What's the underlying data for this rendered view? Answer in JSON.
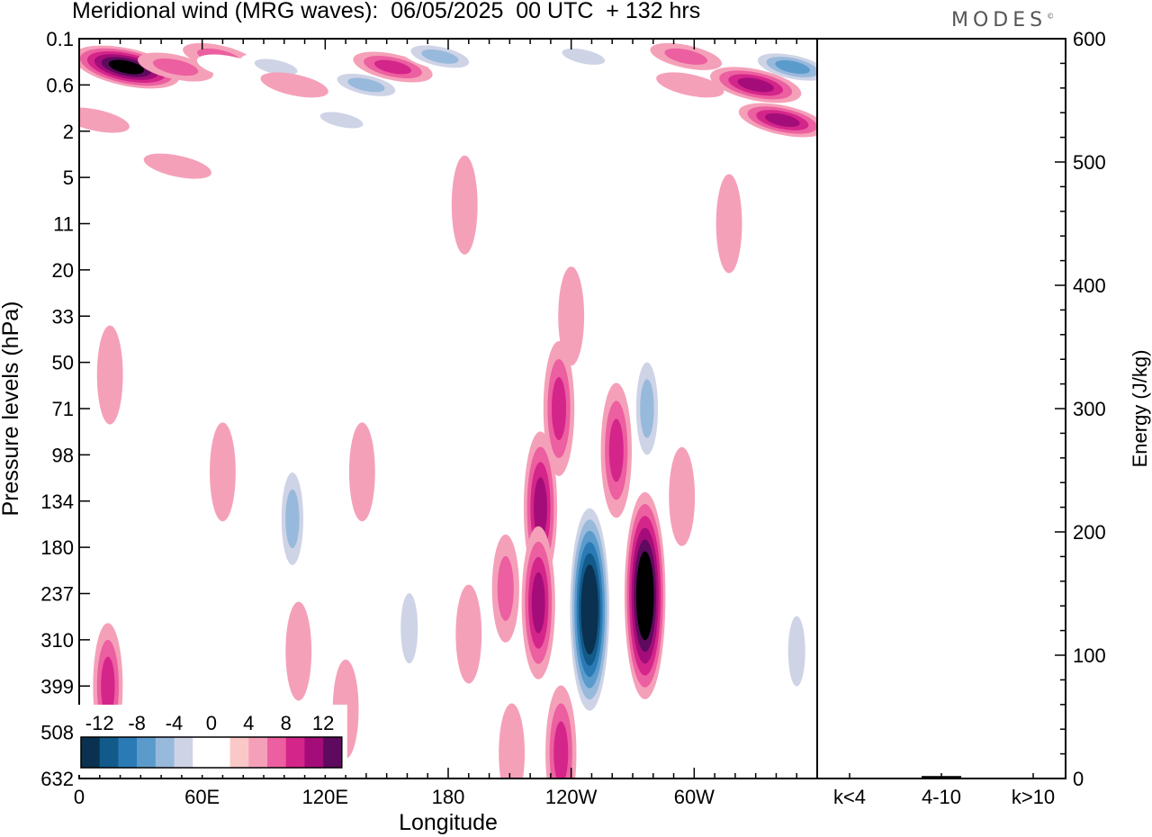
{
  "header": {
    "title": "Meridional wind (MRG waves):  06/05/2025  00 UTC  + 132 hrs",
    "brand": "MODES",
    "brand_mark": "©"
  },
  "chart_data": [
    {
      "type": "heatmap",
      "title": "Meridional wind (MRG waves):  06/05/2025  00 UTC  + 132 hrs",
      "xlabel": "Longitude",
      "ylabel": "Pressure levels (hPa)",
      "x_ticks": [
        "0",
        "60E",
        "120E",
        "180",
        "120W",
        "60W"
      ],
      "x_tick_degrees": [
        0,
        60,
        120,
        180,
        240,
        300
      ],
      "xlim": [
        0,
        360
      ],
      "y_ticks": [
        "0.1",
        "0.6",
        "2",
        "5",
        "11",
        "20",
        "33",
        "50",
        "71",
        "98",
        "134",
        "180",
        "237",
        "310",
        "399",
        "508",
        "632"
      ],
      "y_axis_order": "top-to-bottom",
      "colorbar": {
        "labels": [
          "-12",
          "-8",
          "-4",
          "0",
          "4",
          "8",
          "12"
        ],
        "levels": [
          -16,
          -14,
          -12,
          -10,
          -8,
          -6,
          -4,
          -2,
          0,
          2,
          4,
          6,
          8,
          10,
          12,
          14,
          16
        ],
        "colors": [
          "#0a3150",
          "#125a8a",
          "#2a7ab5",
          "#5b9bcb",
          "#97b9dc",
          "#ced3e6",
          "#ffffff",
          "#ffffff",
          "#fbc8c8",
          "#f5a0b9",
          "#ec5fa0",
          "#d4258a",
          "#a40d79",
          "#5e0a5e"
        ]
      },
      "features": [
        {
          "lon": 23,
          "level": "0.3",
          "value": 12
        },
        {
          "lon": 47,
          "level": "0.3",
          "value": 4
        },
        {
          "lon": 68,
          "level": "0.2",
          "value": 3
        },
        {
          "lon": 74,
          "level": "0.3",
          "value": -2
        },
        {
          "lon": 96,
          "level": "0.3",
          "value": -3
        },
        {
          "lon": 140,
          "level": "0.6",
          "value": -5
        },
        {
          "lon": 153,
          "level": "0.3",
          "value": 5
        },
        {
          "lon": 176,
          "level": "0.2",
          "value": -5
        },
        {
          "lon": 246,
          "level": "0.2",
          "value": -3
        },
        {
          "lon": 296,
          "level": "0.2",
          "value": 3
        },
        {
          "lon": 348,
          "level": "0.3",
          "value": -7
        },
        {
          "lon": 330,
          "level": "0.6",
          "value": 8
        },
        {
          "lon": 343,
          "level": "1.5",
          "value": 7
        },
        {
          "lon": 90,
          "level": "0.6",
          "value": -2
        },
        {
          "lon": 105,
          "level": "0.6",
          "value": 2
        },
        {
          "lon": 128,
          "level": "1.5",
          "value": -3
        },
        {
          "lon": 48,
          "level": "4",
          "value": 2
        },
        {
          "lon": 8,
          "level": "1.5",
          "value": 2
        },
        {
          "lon": 298,
          "level": "0.6",
          "value": 2
        },
        {
          "lon": 287,
          "level": "4",
          "value": -2
        },
        {
          "lon": 201,
          "level": "2",
          "value": -2
        },
        {
          "lon": 147,
          "level": "8",
          "value": -2
        },
        {
          "lon": 188,
          "level": "8",
          "value": 2
        },
        {
          "lon": 317,
          "level": "11",
          "value": 2
        },
        {
          "lon": 240,
          "level": "33",
          "value": 2
        },
        {
          "lon": 15,
          "level": "55",
          "value": 2
        },
        {
          "lon": 234,
          "level": "71",
          "value": 6
        },
        {
          "lon": 277,
          "level": "71",
          "value": -5
        },
        {
          "lon": 70,
          "level": "110",
          "value": 2
        },
        {
          "lon": 104,
          "level": "150",
          "value": -5
        },
        {
          "lon": 138,
          "level": "110",
          "value": 2
        },
        {
          "lon": 167,
          "level": "110",
          "value": -2
        },
        {
          "lon": 225,
          "level": "140",
          "value": 8
        },
        {
          "lon": 224,
          "level": "250",
          "value": 8
        },
        {
          "lon": 208,
          "level": "230",
          "value": 3
        },
        {
          "lon": 249,
          "level": "260",
          "value": -16
        },
        {
          "lon": 276,
          "level": "240",
          "value": 14
        },
        {
          "lon": 294,
          "level": "130",
          "value": 2
        },
        {
          "lon": 262,
          "level": "95",
          "value": 6
        },
        {
          "lon": 161,
          "level": "290",
          "value": -4
        },
        {
          "lon": 190,
          "level": "300",
          "value": 2
        },
        {
          "lon": 211,
          "level": "560",
          "value": 2
        },
        {
          "lon": 235,
          "level": "560",
          "value": 6
        },
        {
          "lon": 262,
          "level": "560",
          "value": -2
        },
        {
          "lon": 14,
          "level": "399",
          "value": 5
        },
        {
          "lon": 52,
          "level": "500",
          "value": -2
        },
        {
          "lon": 130,
          "level": "450",
          "value": 2
        },
        {
          "lon": 350,
          "level": "330",
          "value": -4
        },
        {
          "lon": 107,
          "level": "330",
          "value": 2
        }
      ]
    },
    {
      "type": "bar",
      "ylabel": "Energy (J/kg)",
      "ylim": [
        0,
        600
      ],
      "y_ticks": [
        "0",
        "100",
        "200",
        "300",
        "400",
        "500",
        "600"
      ],
      "categories": [
        "k<4",
        "4-10",
        "k>10"
      ],
      "values": [
        0.5,
        2,
        0.3
      ]
    }
  ]
}
